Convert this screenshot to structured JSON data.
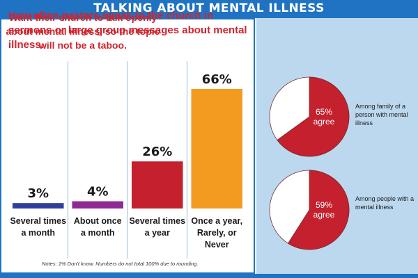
{
  "banner": {
    "title": "TALKING ABOUT MENTAL ILLNESS"
  },
  "left": {
    "title": "How often pastors speak to the church in sermons or large group messages about mental illness.",
    "notes": "Notes: 1% Don't know. Numbers do not total 100% due to rounding."
  },
  "right": {
    "title": "Want their church to talk openly about mental illness, so the topic will not be a taboo.",
    "pies": [
      {
        "label": "Among family of a person with mental illness",
        "pct_text": "65%",
        "agree_text": "agree"
      },
      {
        "label": "Among people with a mental illness",
        "pct_text": "59%",
        "agree_text": "agree"
      }
    ]
  },
  "colors": {
    "banner": "#1f73c2",
    "accent_red": "#d0242e",
    "panel_blue": "#bcd8ee",
    "bar_blue": "#2f3f9c",
    "bar_purple": "#8f2a94",
    "bar_red": "#c4202d",
    "bar_orange": "#f39a21",
    "pie_red": "#c4202d",
    "pie_white": "#ffffff"
  },
  "chart_data": [
    {
      "type": "bar",
      "categories": [
        "Several times a month",
        "About once a month",
        "Several times a year",
        "Once a year, Rarely, or Never"
      ],
      "category_lines": [
        [
          "Several times",
          "a month"
        ],
        [
          "About once",
          "a month"
        ],
        [
          "Several times",
          "a year"
        ],
        [
          "Once a year,",
          "Rarely, or",
          "Never"
        ]
      ],
      "values": [
        3,
        4,
        26,
        66
      ],
      "value_labels": [
        "3%",
        "4%",
        "26%",
        "66%"
      ],
      "ylim": [
        0,
        66
      ],
      "colors": [
        "#2f3f9c",
        "#8f2a94",
        "#c4202d",
        "#f39a21"
      ],
      "grid": false
    },
    {
      "type": "pie",
      "categories": [
        "agree",
        "other"
      ],
      "values": [
        65,
        35
      ],
      "colors": [
        "#c4202d",
        "#ffffff"
      ]
    },
    {
      "type": "pie",
      "categories": [
        "agree",
        "other"
      ],
      "values": [
        59,
        41
      ],
      "colors": [
        "#c4202d",
        "#ffffff"
      ]
    }
  ]
}
